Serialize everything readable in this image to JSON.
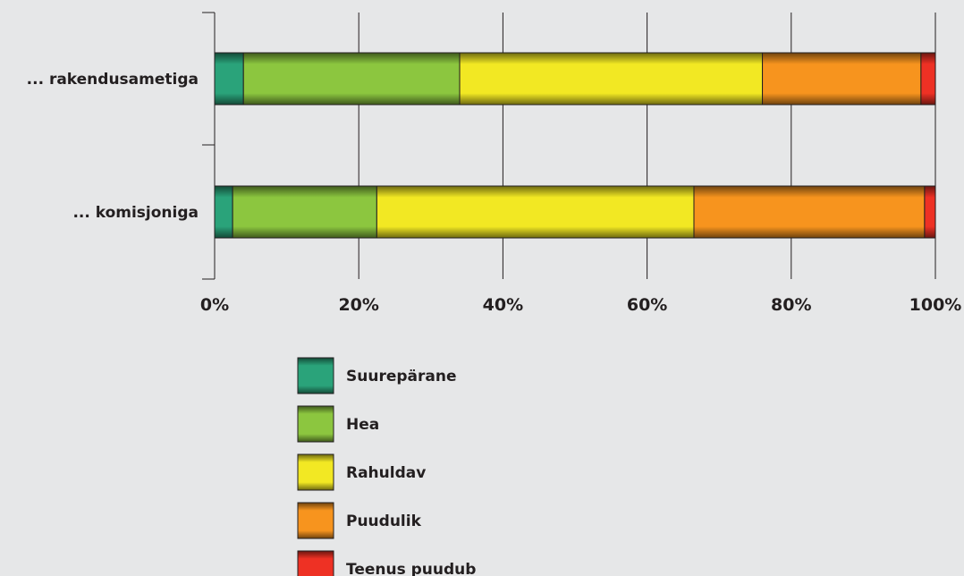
{
  "chart_data": {
    "type": "bar",
    "orientation": "horizontal",
    "stacked": "percent",
    "categories": [
      "... rakendusametiga",
      "... komisjoniga"
    ],
    "series": [
      {
        "name": "Suurepärane",
        "values": [
          4,
          2.5
        ],
        "color": "#2aa37a"
      },
      {
        "name": "Hea",
        "values": [
          30,
          20
        ],
        "color": "#8cc63f"
      },
      {
        "name": "Rahuldav",
        "values": [
          42,
          44
        ],
        "color": "#f2e823"
      },
      {
        "name": "Puudulik",
        "values": [
          22,
          32
        ],
        "color": "#f7941e"
      },
      {
        "name": "Teenus puudub",
        "values": [
          2,
          1.5
        ],
        "color": "#ee3124"
      }
    ],
    "xlim": [
      0,
      100
    ],
    "xticks": [
      "0%",
      "20%",
      "40%",
      "60%",
      "80%",
      "100%"
    ],
    "grid": true,
    "legend_position": "bottom"
  }
}
